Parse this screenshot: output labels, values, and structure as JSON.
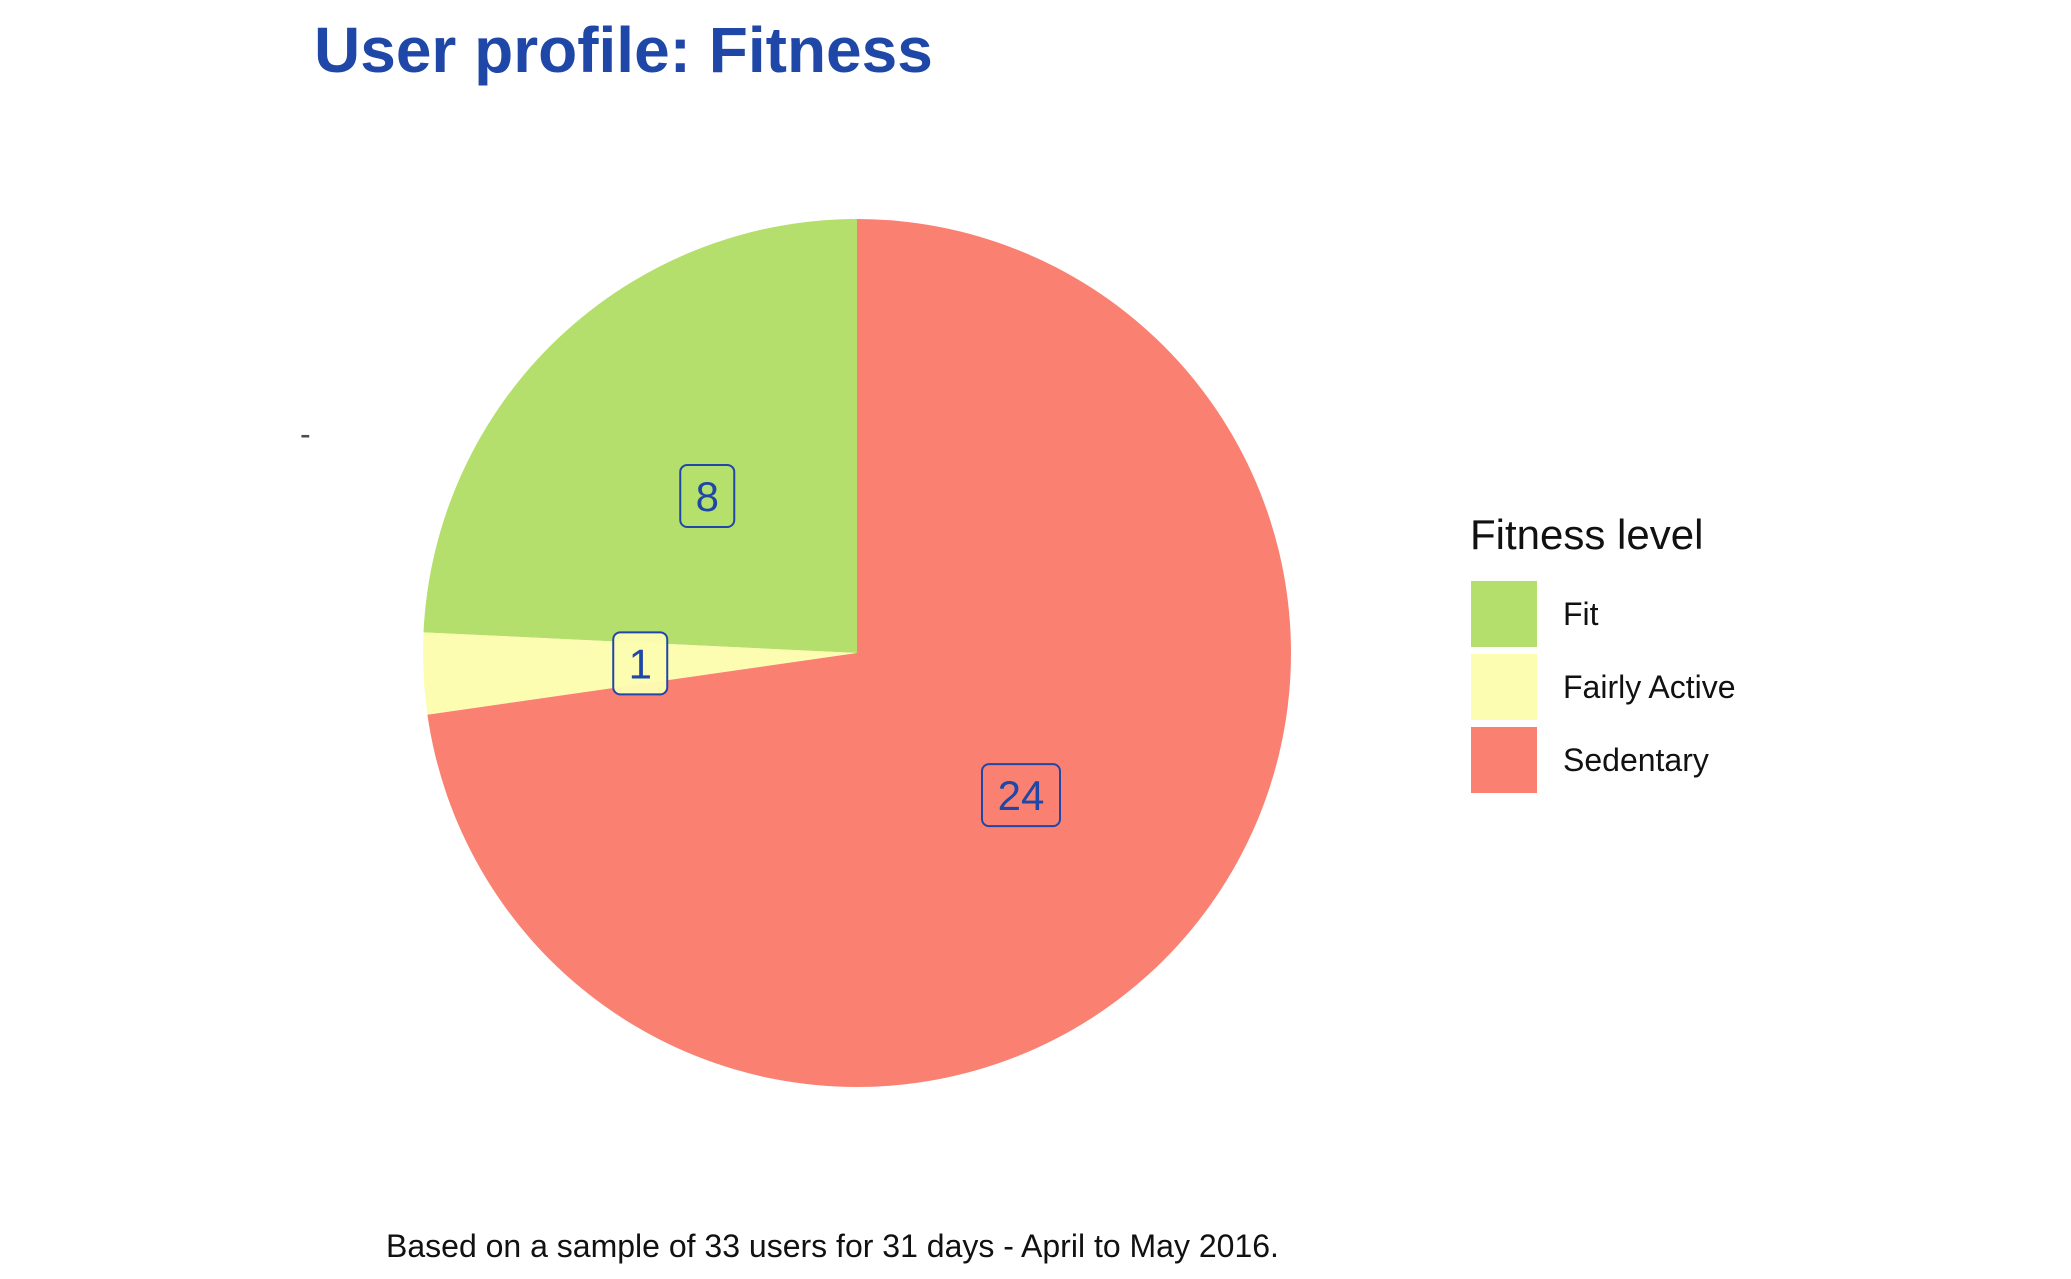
{
  "chart_data": {
    "type": "pie",
    "title": "User profile: Fitness",
    "caption": "Based on a sample of 33 users for 31 days - April to May 2016.",
    "axis_tick_label": "-",
    "legend": {
      "title": "Fitness level",
      "placement": "right"
    },
    "slices": [
      {
        "label": "Fit",
        "value": 8,
        "color": "#b5df6c"
      },
      {
        "label": "Fairly Active",
        "value": 1,
        "color": "#fdfdb2"
      },
      {
        "label": "Sedentary",
        "value": 24,
        "color": "#fa8072"
      }
    ],
    "title_color": "#1f47a8",
    "label_text_color": "#1f47a8"
  }
}
